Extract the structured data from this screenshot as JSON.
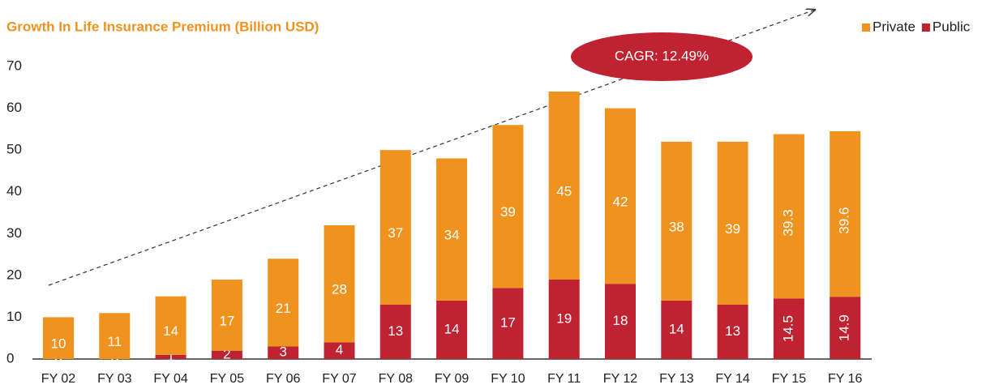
{
  "chart_data": {
    "type": "stacked_bar",
    "title": "Growth In Life Insurance Premium (Billion USD)",
    "annotation": "CAGR: 12.49%",
    "categories": [
      "FY 02",
      "FY 03",
      "FY 04",
      "FY 05",
      "FY 06",
      "FY 07",
      "FY 08",
      "FY 09",
      "FY 10",
      "FY 11",
      "FY 12",
      "FY 13",
      "FY 14",
      "FY 15",
      "FY 16"
    ],
    "series": [
      {
        "name": "Public",
        "color": "#bf2230",
        "values": [
          0,
          0,
          1,
          2,
          3,
          4,
          13,
          14,
          17,
          19,
          18,
          14,
          13,
          14.5,
          14.9
        ]
      },
      {
        "name": "Private",
        "color": "#f0921e",
        "values": [
          10,
          11,
          14,
          17,
          21,
          28,
          37,
          34,
          39,
          45,
          42,
          38,
          39,
          39.3,
          39.6
        ]
      }
    ],
    "legend_order": [
      "Private",
      "Public"
    ],
    "legend": "top-right",
    "ylim": [
      0,
      70
    ],
    "yticks": [
      0,
      10,
      20,
      30,
      40,
      50,
      60,
      70
    ],
    "grid": false
  }
}
